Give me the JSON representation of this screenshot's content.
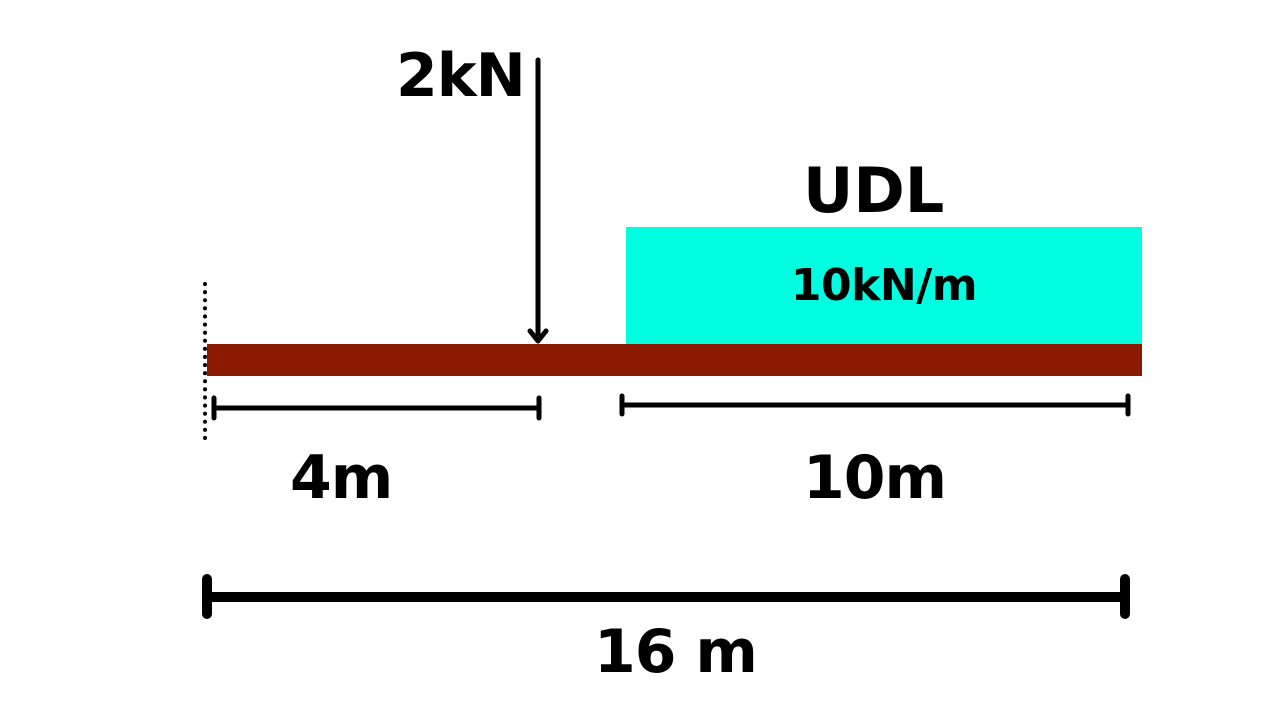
{
  "point_load": {
    "label": "2kN"
  },
  "udl": {
    "title": "UDL",
    "intensity_label": "10kN/m",
    "fill_color": "#00FFE0"
  },
  "beam": {
    "color": "#8B1A00"
  },
  "dimensions": {
    "left_span_label": "4m",
    "udl_span_label": "10m",
    "total_span_label": "16 m"
  }
}
